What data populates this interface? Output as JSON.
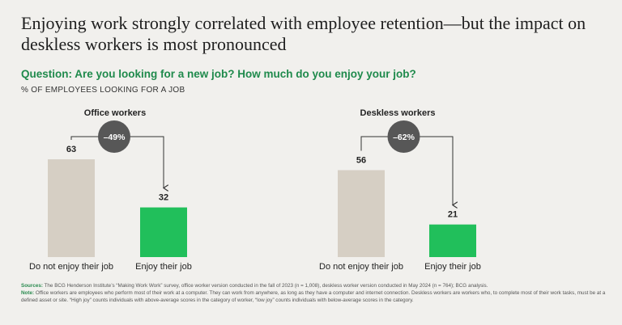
{
  "title": "Enjoying work strongly correlated with employee retention—but the impact on deskless workers is most pronounced",
  "question": "Question: Are you looking for a new job? How much do you enjoy your job?",
  "measure_label": "% OF EMPLOYEES LOOKING FOR A JOB",
  "colors": {
    "not_enjoy": "#d6cfc4",
    "enjoy": "#21bf5b",
    "badge": "#575757",
    "accent_text": "#1f8a4c"
  },
  "chart_data": [
    {
      "type": "bar",
      "title": "Office workers",
      "categories": [
        "Do not enjoy their job",
        "Enjoy their job"
      ],
      "values": [
        63,
        32
      ],
      "change_label": "–49%",
      "ylim": [
        0,
        100
      ],
      "grid": false
    },
    {
      "type": "bar",
      "title": "Deskless workers",
      "categories": [
        "Do not enjoy their job",
        "Enjoy their job"
      ],
      "values": [
        56,
        21
      ],
      "change_label": "–62%",
      "ylim": [
        0,
        100
      ],
      "grid": false
    }
  ],
  "footnotes": {
    "sources_label": "Sources:",
    "sources_text": " The BCG Henderson Institute’s “Making Work Work” survey, office worker version conducted in the fall of 2023 (n = 1,008), deskless worker version conducted in May 2024 (n = 764); BCG analysis.",
    "note_label": "Note:",
    "note_text": " Office workers are employees who perform most of their work at a computer. They can work from anywhere, as long as they have a computer and internet connection. Deskless workers are workers who, to complete most of their work tasks, must be at a defined asset or site. “High joy” counts individuals with above-average scores in the category of worker, “low joy” counts individuals with below-average scores in the category."
  }
}
